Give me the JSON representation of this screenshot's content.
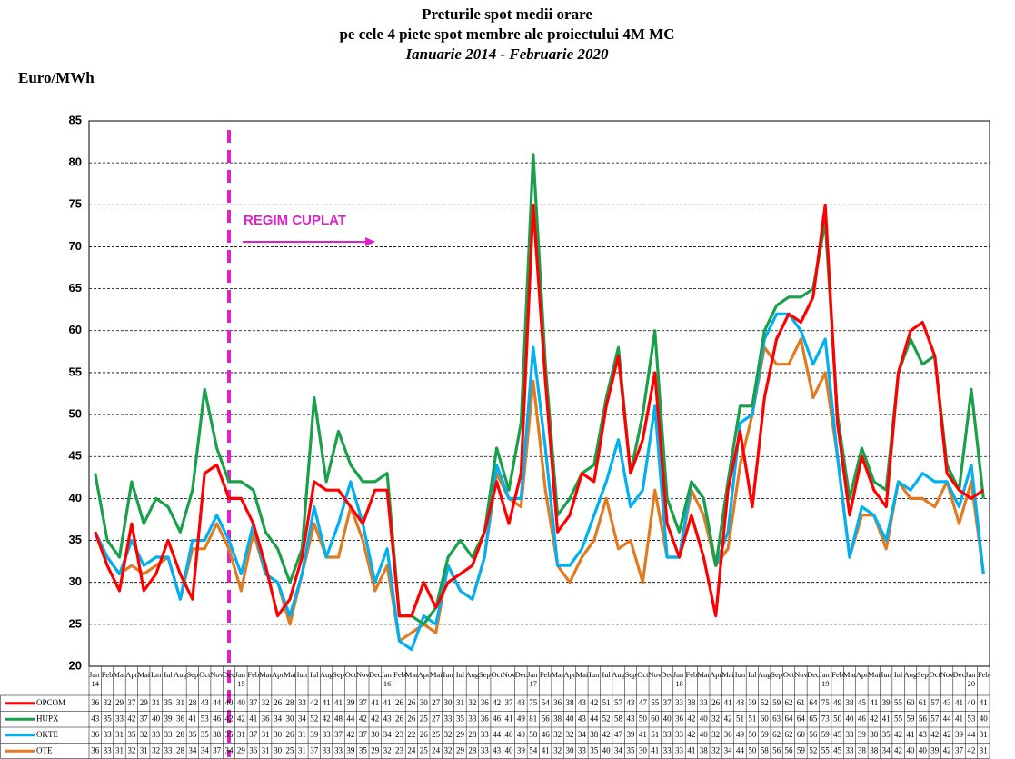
{
  "chart_data": {
    "type": "line",
    "title": "Preturile spot medii orare",
    "subtitle": "pe cele 4 piete spot membre ale proiectului 4M MC",
    "period": "Ianuarie 2014 - Februarie 2020",
    "y_label": "Euro/MWh",
    "annotation": "REGIM CUPLAT",
    "categories": [
      "Jan 14",
      "Feb",
      "Mar",
      "Apr",
      "Mai",
      "Iun",
      "Iul",
      "Aug",
      "Sep",
      "Oct",
      "Nov",
      "Dec",
      "Jan 15",
      "Feb",
      "Mar",
      "Apr",
      "Mai",
      "Iun",
      "Iul",
      "Aug",
      "Sep",
      "Oct",
      "Nov",
      "Dec",
      "Jan 16",
      "Feb",
      "Mar",
      "Apr",
      "Mai",
      "Iun",
      "Iul",
      "Aug",
      "Sep",
      "Oct",
      "Nov",
      "Dec",
      "Jan 17",
      "Feb",
      "Mar",
      "Apr",
      "Mai",
      "Iun",
      "Iul",
      "Aug",
      "Sep",
      "Oct",
      "Nov",
      "Dec",
      "Jan 18",
      "Feb",
      "Mar",
      "Apr",
      "Mai",
      "Iun",
      "Iul",
      "Aug",
      "Sep",
      "Oct",
      "Nov",
      "Dec",
      "Jan 19",
      "Feb",
      "Mar",
      "Apr",
      "Mai",
      "Iun",
      "Iul",
      "Aug",
      "Sep",
      "Oct",
      "Nov",
      "Dec",
      "Jan 20",
      "Feb"
    ],
    "series": [
      {
        "name": "OPCOM",
        "color": "#ff0000",
        "values": [
          36,
          32,
          29,
          37,
          29,
          31,
          35,
          31,
          28,
          43,
          44,
          40,
          40,
          37,
          32,
          26,
          28,
          33,
          42,
          41,
          41,
          39,
          37,
          41,
          41,
          26,
          26,
          30,
          27,
          30,
          31,
          32,
          36,
          42,
          37,
          43,
          75,
          54,
          36,
          38,
          43,
          42,
          51,
          57,
          43,
          47,
          55,
          37,
          33,
          38,
          33,
          26,
          41,
          48,
          39,
          52,
          59,
          62,
          61,
          64,
          75,
          49,
          38,
          45,
          41,
          39,
          55,
          60,
          61,
          57,
          43,
          41,
          40,
          41
        ]
      },
      {
        "name": "HUPX",
        "color": "#1aa04a",
        "values": [
          43,
          35,
          33,
          42,
          37,
          40,
          39,
          36,
          41,
          53,
          46,
          42,
          42,
          41,
          36,
          34,
          30,
          34,
          52,
          42,
          48,
          44,
          42,
          42,
          43,
          26,
          26,
          25,
          27,
          33,
          35,
          33,
          36,
          46,
          41,
          49,
          81,
          56,
          38,
          40,
          43,
          44,
          52,
          58,
          43,
          50,
          60,
          40,
          36,
          42,
          40,
          32,
          42,
          51,
          51,
          60,
          63,
          64,
          64,
          65,
          73,
          50,
          40,
          46,
          42,
          41,
          55,
          59,
          56,
          57,
          44,
          41,
          53,
          40
        ]
      },
      {
        "name": "OKTE",
        "color": "#00b0f0",
        "values": [
          36,
          33,
          31,
          35,
          32,
          33,
          33,
          28,
          35,
          35,
          38,
          35,
          31,
          37,
          31,
          30,
          26,
          31,
          39,
          33,
          37,
          42,
          37,
          30,
          34,
          23,
          22,
          26,
          25,
          32,
          29,
          28,
          33,
          44,
          40,
          40,
          58,
          46,
          32,
          32,
          34,
          38,
          42,
          47,
          39,
          41,
          51,
          33,
          33,
          42,
          40,
          32,
          36,
          49,
          50,
          59,
          62,
          62,
          60,
          56,
          59,
          45,
          33,
          39,
          38,
          35,
          42,
          41,
          43,
          42,
          42,
          39,
          44,
          31
        ]
      },
      {
        "name": "OTE",
        "color": "#e07b21",
        "values": [
          36,
          33,
          31,
          32,
          31,
          32,
          33,
          28,
          34,
          34,
          37,
          34,
          29,
          36,
          31,
          30,
          25,
          31,
          37,
          33,
          33,
          39,
          35,
          29,
          32,
          23,
          24,
          25,
          24,
          32,
          29,
          28,
          33,
          43,
          40,
          39,
          54,
          41,
          32,
          30,
          33,
          35,
          40,
          34,
          35,
          30,
          41,
          33,
          33,
          41,
          38,
          32,
          34,
          44,
          50,
          58,
          56,
          56,
          59,
          52,
          55,
          45,
          33,
          38,
          38,
          34,
          42,
          40,
          40,
          39,
          42,
          37,
          42,
          31
        ]
      }
    ],
    "ylim": [
      20,
      85
    ],
    "yticks": [
      20,
      25,
      30,
      35,
      40,
      45,
      50,
      55,
      60,
      65,
      70,
      75,
      80,
      85
    ],
    "grid": true
  }
}
